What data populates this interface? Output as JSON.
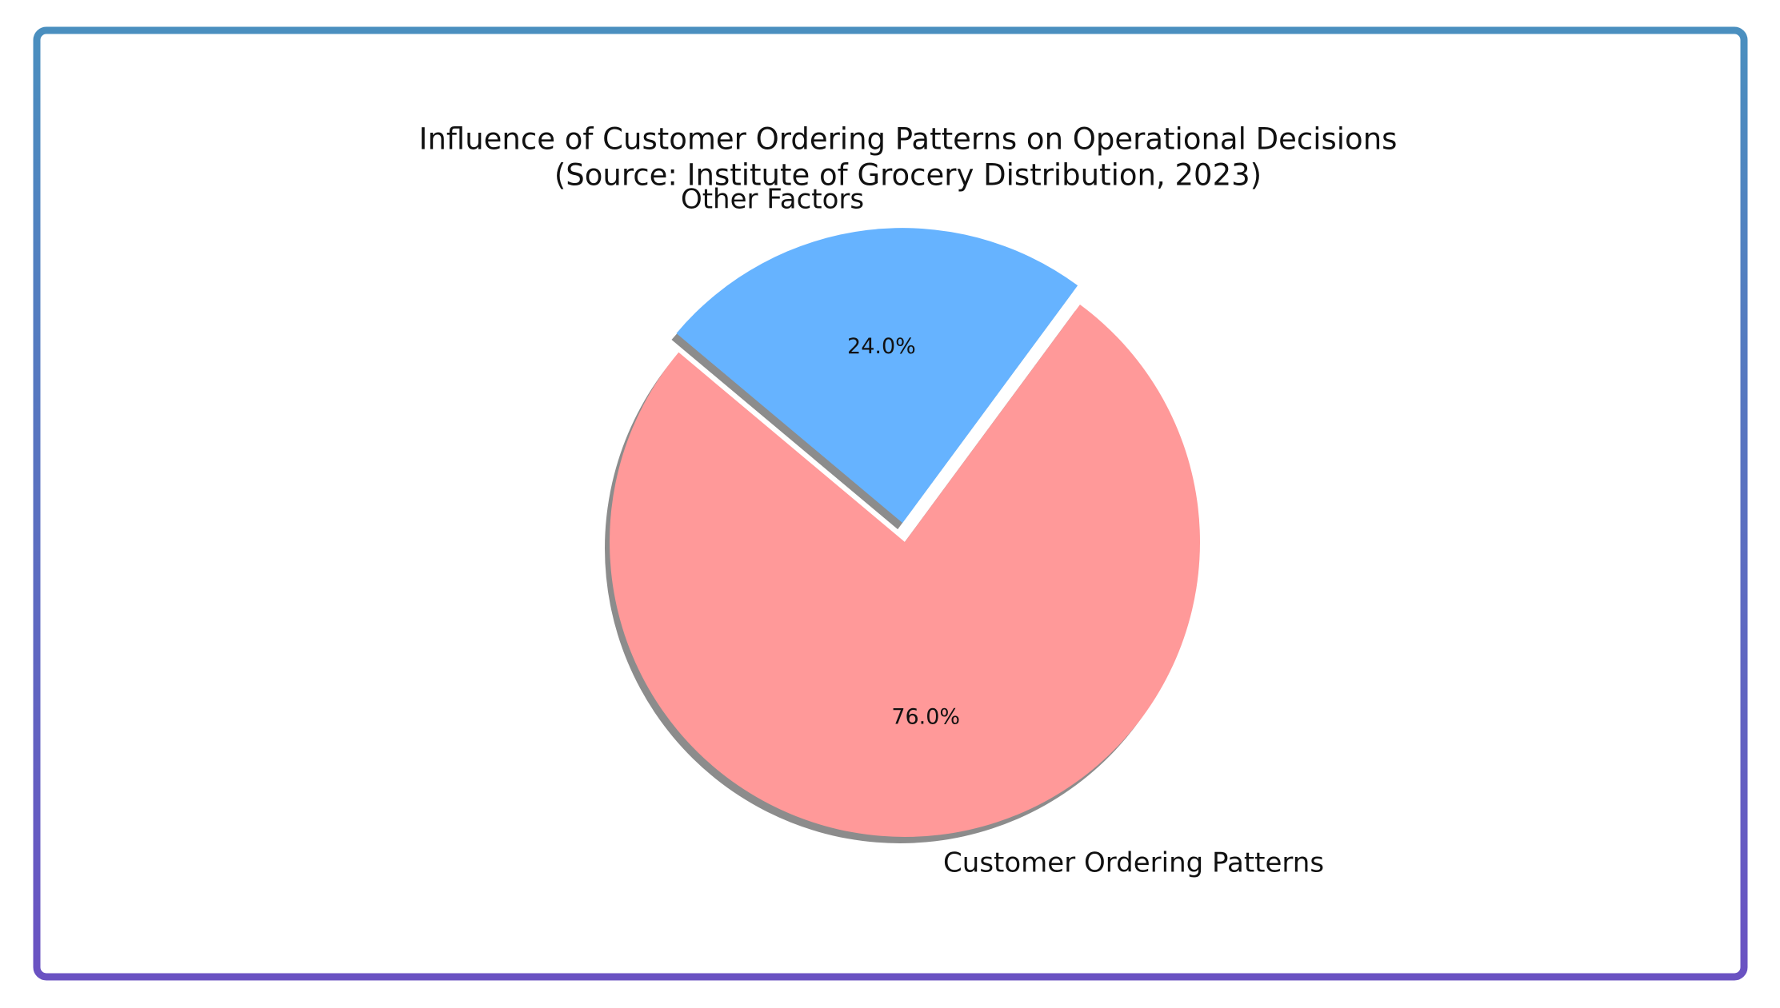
{
  "chart_data": {
    "type": "pie",
    "title": "Influence of Customer Ordering Patterns on Operational Decisions",
    "subtitle": "(Source: Institute of Grocery Distribution, 2023)",
    "categories": [
      "Customer Ordering Patterns",
      "Other Factors"
    ],
    "values": [
      76,
      24
    ],
    "value_labels": [
      "76.0%",
      "24.0%"
    ],
    "colors": [
      "#ff9999",
      "#66b3ff"
    ]
  }
}
